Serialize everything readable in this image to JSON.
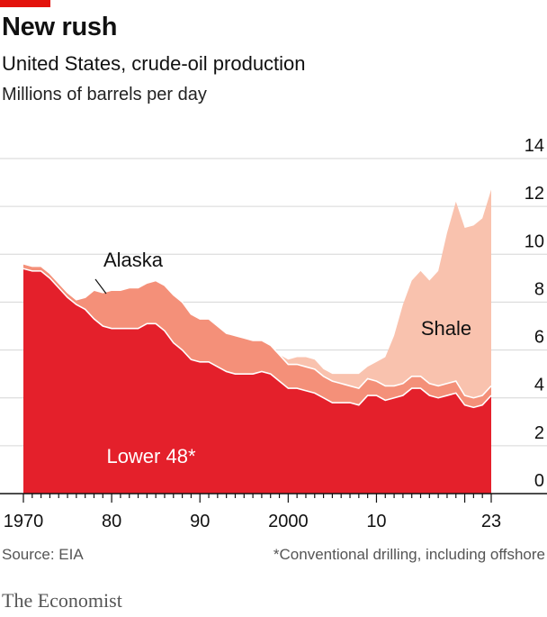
{
  "header": {
    "title": "New rush",
    "subtitle": "United States, crude-oil production",
    "units": "Millions of barrels per day"
  },
  "footer": {
    "source": "Source: EIA",
    "footnote": "*Conventional drilling, including offshore",
    "brand": "The Economist"
  },
  "colors": {
    "accent": "#e3120b",
    "lower48": "#e4202b",
    "alaska": "#f49079",
    "shale": "#f9c2ae",
    "grid": "#d6d6d6"
  },
  "chart_data": {
    "type": "area",
    "stacked": true,
    "title": "New rush",
    "subtitle": "United States, crude-oil production",
    "ylabel": "Millions of barrels per day",
    "xlim": [
      1970,
      2023
    ],
    "ylim": [
      0,
      14
    ],
    "yticks": [
      0,
      2,
      4,
      6,
      8,
      10,
      12,
      14
    ],
    "xticks": [
      {
        "value": 1970,
        "label": "1970"
      },
      {
        "value": 1980,
        "label": "80"
      },
      {
        "value": 1990,
        "label": "90"
      },
      {
        "value": 2000,
        "label": "2000"
      },
      {
        "value": 2010,
        "label": "10"
      },
      {
        "value": 2023,
        "label": "23"
      }
    ],
    "grid": true,
    "annotations": [
      {
        "text": "Alaska",
        "series": "Alaska"
      },
      {
        "text": "Shale",
        "series": "Shale"
      },
      {
        "text": "Lower 48*",
        "series": "Lower 48"
      }
    ],
    "x": [
      1970,
      1971,
      1972,
      1973,
      1974,
      1975,
      1976,
      1977,
      1978,
      1979,
      1980,
      1981,
      1982,
      1983,
      1984,
      1985,
      1986,
      1987,
      1988,
      1989,
      1990,
      1991,
      1992,
      1993,
      1994,
      1995,
      1996,
      1997,
      1998,
      1999,
      2000,
      2001,
      2002,
      2003,
      2004,
      2005,
      2006,
      2007,
      2008,
      2009,
      2010,
      2011,
      2012,
      2013,
      2014,
      2015,
      2016,
      2017,
      2018,
      2019,
      2020,
      2021,
      2022,
      2023
    ],
    "series": [
      {
        "name": "Lower 48",
        "values": [
          9.4,
          9.3,
          9.3,
          9.0,
          8.6,
          8.2,
          7.9,
          7.7,
          7.3,
          7.0,
          6.9,
          6.9,
          6.9,
          6.9,
          7.1,
          7.1,
          6.8,
          6.3,
          6.0,
          5.6,
          5.5,
          5.5,
          5.3,
          5.1,
          5.0,
          5.0,
          5.0,
          5.1,
          5.0,
          4.7,
          4.4,
          4.4,
          4.3,
          4.2,
          4.0,
          3.8,
          3.8,
          3.8,
          3.7,
          4.1,
          4.1,
          3.9,
          4.0,
          4.1,
          4.4,
          4.4,
          4.1,
          4.0,
          4.1,
          4.2,
          3.7,
          3.6,
          3.7,
          4.1
        ]
      },
      {
        "name": "Alaska",
        "values": [
          0.2,
          0.2,
          0.2,
          0.2,
          0.2,
          0.2,
          0.2,
          0.5,
          1.2,
          1.4,
          1.6,
          1.6,
          1.7,
          1.7,
          1.7,
          1.8,
          1.9,
          2.0,
          2.0,
          1.9,
          1.8,
          1.8,
          1.7,
          1.6,
          1.6,
          1.5,
          1.4,
          1.3,
          1.2,
          1.1,
          1.0,
          1.0,
          1.0,
          1.0,
          0.9,
          0.9,
          0.8,
          0.7,
          0.7,
          0.7,
          0.6,
          0.6,
          0.5,
          0.5,
          0.5,
          0.5,
          0.5,
          0.5,
          0.5,
          0.5,
          0.4,
          0.4,
          0.4,
          0.4
        ]
      },
      {
        "name": "Shale",
        "values": [
          0,
          0,
          0,
          0,
          0,
          0,
          0,
          0,
          0,
          0,
          0,
          0,
          0,
          0,
          0,
          0,
          0,
          0,
          0,
          0,
          0,
          0,
          0,
          0,
          0,
          0,
          0,
          0,
          0,
          0,
          0.2,
          0.3,
          0.4,
          0.4,
          0.3,
          0.3,
          0.4,
          0.5,
          0.6,
          0.5,
          0.8,
          1.2,
          2.1,
          3.3,
          4.0,
          4.4,
          4.3,
          4.8,
          6.3,
          7.5,
          7.0,
          7.2,
          7.4,
          8.2
        ]
      }
    ]
  }
}
